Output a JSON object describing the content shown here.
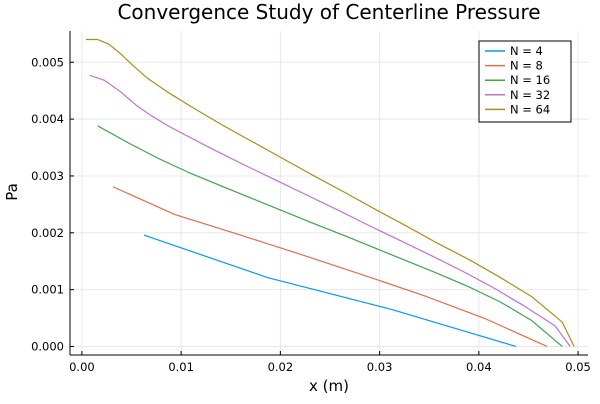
{
  "chart_data": {
    "type": "line",
    "title": "Convergence Study of Centerline Pressure",
    "xlabel": "x (m)",
    "ylabel": "Pa",
    "xlim": [
      -0.0012,
      0.051
    ],
    "ylim": [
      -0.00015,
      0.00555
    ],
    "x_ticks": [
      0.0,
      0.01,
      0.02,
      0.03,
      0.04,
      0.05
    ],
    "x_tick_labels": [
      "0.00",
      "0.01",
      "0.02",
      "0.03",
      "0.04",
      "0.05"
    ],
    "y_ticks": [
      0.0,
      0.001,
      0.002,
      0.003,
      0.004,
      0.005
    ],
    "y_tick_labels": [
      "0.000",
      "0.001",
      "0.002",
      "0.003",
      "0.004",
      "0.005"
    ],
    "grid": true,
    "legend_position": "top-right",
    "series": [
      {
        "name": "N = 4",
        "color": "#009AFA",
        "x": [
          0.00625,
          0.01875,
          0.03125,
          0.04375
        ],
        "y": [
          0.00196,
          0.00121,
          0.00065,
          0.0
        ]
      },
      {
        "name": "N = 8",
        "color": "#E26F46",
        "x": [
          0.003125,
          0.009375,
          0.015625,
          0.021875,
          0.028125,
          0.034375,
          0.040625,
          0.046875
        ],
        "y": [
          0.00281,
          0.00232,
          0.00198,
          0.00163,
          0.00127,
          0.0009,
          0.00049,
          0.0
        ]
      },
      {
        "name": "N = 16",
        "color": "#3DA44D",
        "x": [
          0.0016,
          0.0047,
          0.0078,
          0.0109,
          0.0141,
          0.0172,
          0.0203,
          0.0234,
          0.0266,
          0.0297,
          0.0328,
          0.0359,
          0.0391,
          0.0422,
          0.0453,
          0.0484
        ],
        "y": [
          0.00388,
          0.00358,
          0.0033,
          0.00305,
          0.00282,
          0.0026,
          0.00238,
          0.00216,
          0.00194,
          0.00172,
          0.0015,
          0.00128,
          0.00104,
          0.00078,
          0.00046,
          0.0
        ]
      },
      {
        "name": "N = 32",
        "color": "#C271D2",
        "x": [
          0.0008,
          0.0023,
          0.0039,
          0.0055,
          0.007,
          0.0086,
          0.0102,
          0.0133,
          0.0164,
          0.0195,
          0.0227,
          0.0258,
          0.0289,
          0.032,
          0.0352,
          0.0383,
          0.0414,
          0.0445,
          0.0477,
          0.0492
        ],
        "y": [
          0.00477,
          0.00468,
          0.00448,
          0.00424,
          0.00406,
          0.00389,
          0.00374,
          0.00346,
          0.00319,
          0.00293,
          0.00266,
          0.0024,
          0.00213,
          0.00187,
          0.0016,
          0.00133,
          0.00104,
          0.00072,
          0.00036,
          0.0
        ]
      },
      {
        "name": "N = 64",
        "color": "#AC8E18",
        "x": [
          0.0004,
          0.0016,
          0.0027,
          0.0039,
          0.0051,
          0.0066,
          0.0086,
          0.0109,
          0.0141,
          0.0172,
          0.0203,
          0.0234,
          0.0266,
          0.0297,
          0.0328,
          0.0359,
          0.0391,
          0.0422,
          0.0453,
          0.0484,
          0.0496
        ],
        "y": [
          0.0054,
          0.0054,
          0.00532,
          0.00515,
          0.00495,
          0.00472,
          0.00448,
          0.00423,
          0.0039,
          0.0036,
          0.0033,
          0.003,
          0.0027,
          0.0024,
          0.00211,
          0.00181,
          0.00152,
          0.00121,
          0.00088,
          0.00043,
          0.0
        ]
      }
    ]
  }
}
